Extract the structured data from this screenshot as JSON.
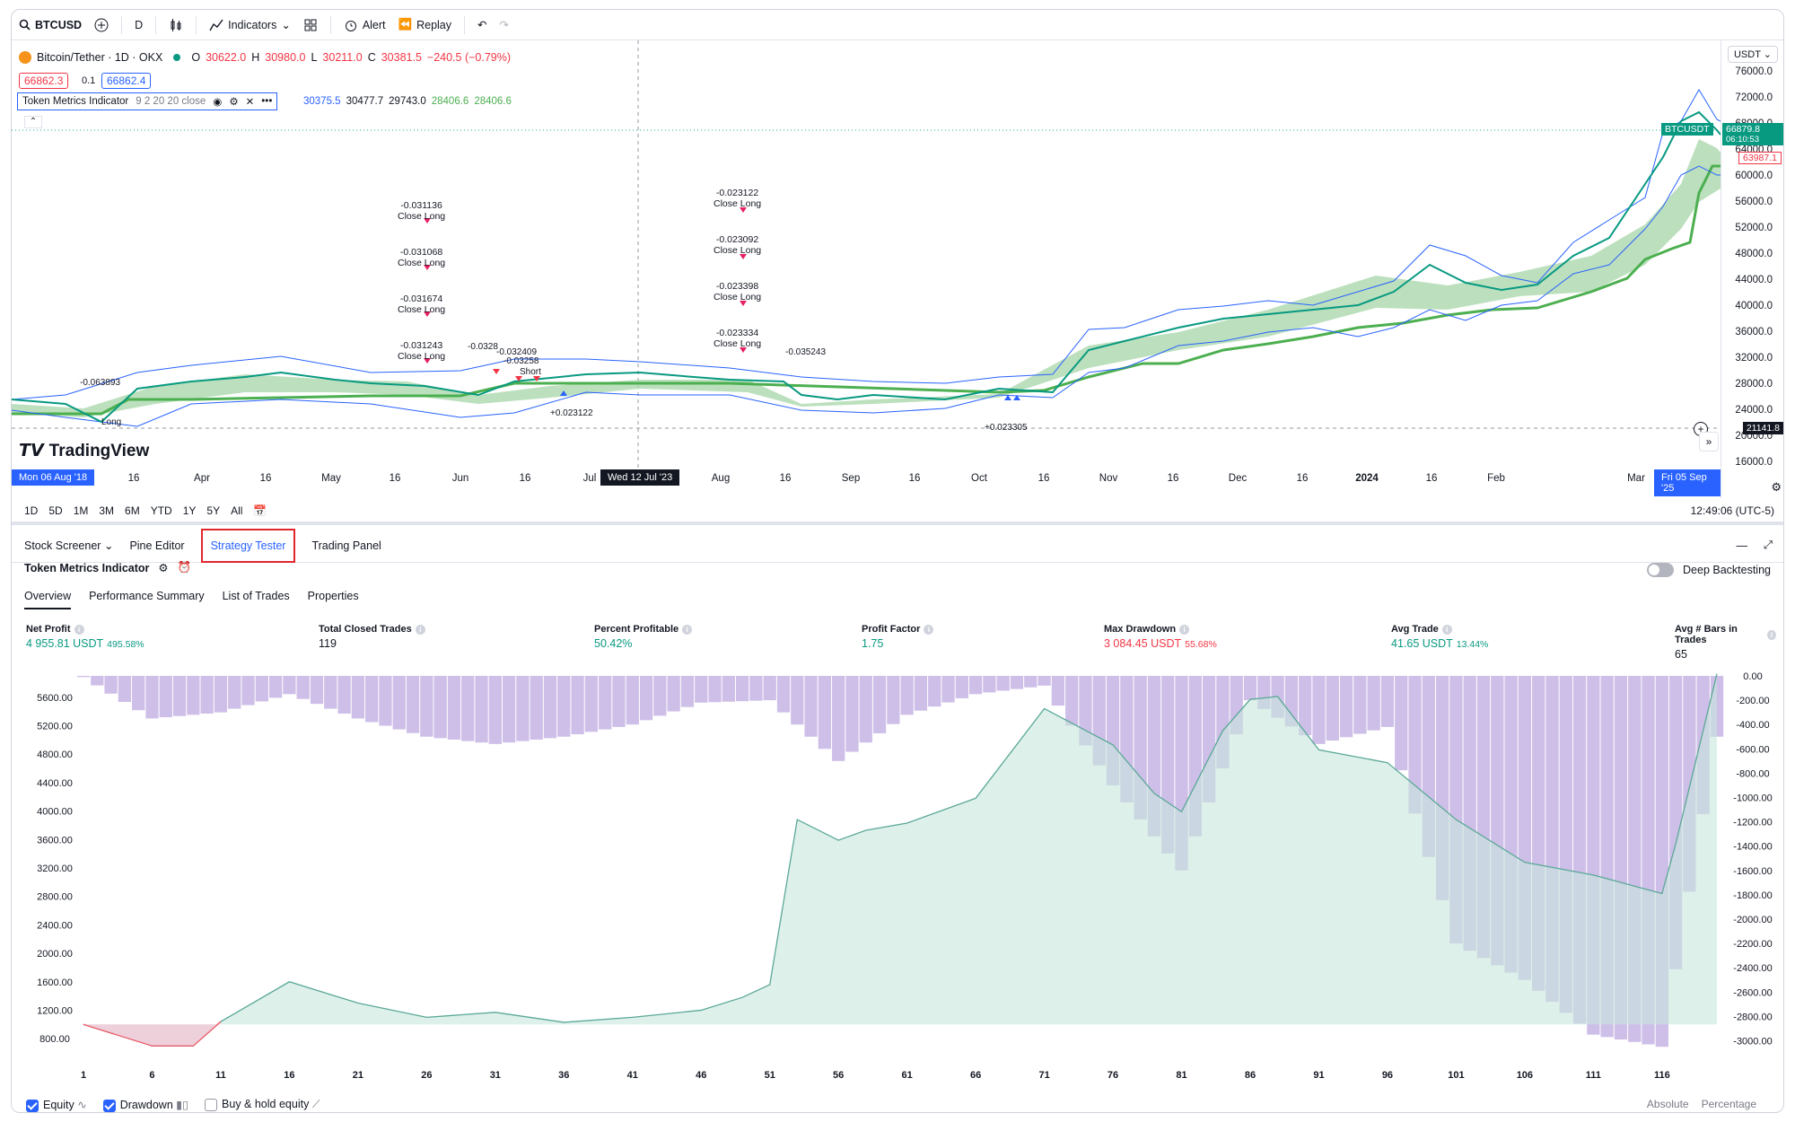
{
  "toolbar": {
    "symbol": "BTCUSD",
    "interval": "D",
    "indicators": "Indicators",
    "alert": "Alert",
    "replay": "Replay"
  },
  "legend": {
    "title": "Bitcoin/Tether · 1D · OKX",
    "o_label": "O",
    "o": "30622.0",
    "h_label": "H",
    "h": "30980.0",
    "l_label": "L",
    "l": "30211.0",
    "c_label": "C",
    "c": "30381.5",
    "change": "−240.5 (−0.79%)",
    "bid": "66862.3",
    "spread": "0.1",
    "ask": "66862.4"
  },
  "indicator": {
    "name": "Token Metrics Indicator",
    "params": "9 2 20 20 close",
    "values": [
      "30375.5",
      "30477.7",
      "29743.0",
      "28406.6",
      "28406.6"
    ]
  },
  "price_axis": {
    "currency": "USDT",
    "ticks": [
      "76000.0",
      "72000.0",
      "68000.0",
      "64000.0",
      "60000.0",
      "56000.0",
      "52000.0",
      "48000.0",
      "44000.0",
      "40000.0",
      "36000.0",
      "32000.0",
      "28000.0",
      "24000.0",
      "20000.0",
      "16000.0"
    ],
    "last_symbol": "BTCUSDT",
    "last_price": "66879.8",
    "countdown": "06:10:53",
    "low_tag": "63987.1",
    "crosshair_price": "21141.8"
  },
  "time_axis": {
    "start_tag": "Mon 06 Aug '18",
    "crosshair_tag": "Wed 12 Jul '23",
    "end_tag": "Fri 05 Sep '25",
    "labels": [
      "16",
      "Apr",
      "16",
      "May",
      "16",
      "Jun",
      "16",
      "Jul",
      "Aug",
      "16",
      "Sep",
      "16",
      "Oct",
      "16",
      "Nov",
      "16",
      "Dec",
      "16",
      "2024",
      "16",
      "Feb",
      "Mar"
    ]
  },
  "annotations": {
    "group1": [
      "-0.031136",
      "Close Long",
      "-0.031068",
      "Close Long",
      "-0.031674",
      "Close Long",
      "-0.031243",
      "Close Long"
    ],
    "group2": [
      "-0.023122",
      "Close Long",
      "-0.023092",
      "Close Long",
      "-0.023398",
      "Close Long",
      "-0.023334",
      "Close Long"
    ],
    "misc": [
      "-0.063893",
      "-0.0328",
      "-0.032409",
      "-0.03258",
      "Short",
      "Long",
      "+0.023122",
      "-0.035243",
      "+0.023305"
    ]
  },
  "logo_text": "TradingView",
  "ranges": [
    "1D",
    "5D",
    "1M",
    "3M",
    "6M",
    "YTD",
    "1Y",
    "5Y",
    "All"
  ],
  "clock": "12:49:06 (UTC-5)",
  "panel_tabs": {
    "screener": "Stock Screener",
    "pine": "Pine Editor",
    "tester": "Strategy Tester",
    "trading": "Trading Panel"
  },
  "strategy": {
    "name": "Token Metrics Indicator",
    "deep_backtesting": "Deep Backtesting",
    "subtabs": [
      "Overview",
      "Performance Summary",
      "List of Trades",
      "Properties"
    ]
  },
  "stats": {
    "net_profit": {
      "label": "Net Profit",
      "value": "4 955.81 USDT",
      "pct": "495.58%"
    },
    "closed_trades": {
      "label": "Total Closed Trades",
      "value": "119"
    },
    "pct_profitable": {
      "label": "Percent Profitable",
      "value": "50.42%"
    },
    "profit_factor": {
      "label": "Profit Factor",
      "value": "1.75"
    },
    "max_drawdown": {
      "label": "Max Drawdown",
      "value": "3 084.45 USDT",
      "pct": "55.68%"
    },
    "avg_trade": {
      "label": "Avg Trade",
      "value": "41.65 USDT",
      "pct": "13.44%"
    },
    "avg_bars": {
      "label": "Avg # Bars in Trades",
      "value": "65"
    }
  },
  "equity_chart": {
    "left_ticks": [
      "5600.00",
      "5200.00",
      "4800.00",
      "4400.00",
      "4000.00",
      "3600.00",
      "3200.00",
      "2800.00",
      "2400.00",
      "2000.00",
      "1600.00",
      "1200.00",
      "800.00"
    ],
    "right_ticks": [
      "0.00",
      "-200.00",
      "-400.00",
      "-600.00",
      "-800.00",
      "-1000.00",
      "-1200.00",
      "-1400.00",
      "-1600.00",
      "-1800.00",
      "-2000.00",
      "-2200.00",
      "-2400.00",
      "-2600.00",
      "-2800.00",
      "-3000.00"
    ],
    "x_ticks": [
      "1",
      "6",
      "11",
      "16",
      "21",
      "26",
      "31",
      "36",
      "41",
      "46",
      "51",
      "56",
      "61",
      "66",
      "71",
      "76",
      "81",
      "86",
      "91",
      "96",
      "101",
      "106",
      "111",
      "116"
    ],
    "absolute_label": "Absolute",
    "percentage_label": "Percentage"
  },
  "chart_data": {
    "type": "area",
    "title": "",
    "series": [
      {
        "name": "Equity",
        "x": [
          1,
          6,
          9,
          11,
          16,
          21,
          26,
          31,
          36,
          41,
          46,
          49,
          51,
          53,
          56,
          58,
          61,
          66,
          71,
          76,
          79,
          81,
          84,
          86,
          88,
          91,
          96,
          101,
          106,
          111,
          116,
          117,
          120
        ],
        "values": [
          1000,
          700,
          700,
          1040,
          1600,
          1300,
          1100,
          1170,
          1030,
          1100,
          1200,
          1380,
          1560,
          3880,
          3590,
          3730,
          3830,
          4180,
          5440,
          4930,
          4250,
          3990,
          5130,
          5570,
          5610,
          4860,
          4680,
          3880,
          3280,
          3100,
          2840,
          3540,
          5930
        ]
      },
      {
        "name": "Drawdown",
        "x": [
          1,
          6,
          11,
          16,
          21,
          26,
          31,
          36,
          41,
          46,
          51,
          56,
          61,
          66,
          71,
          76,
          81,
          86,
          91,
          96,
          101,
          106,
          111,
          116,
          120
        ],
        "values": [
          -10,
          -350,
          -300,
          -150,
          -350,
          -500,
          -560,
          -500,
          -400,
          -220,
          -200,
          -700,
          -320,
          -150,
          -80,
          -900,
          -1600,
          -200,
          -560,
          -420,
          -2200,
          -2500,
          -2950,
          -3050,
          -500
        ]
      }
    ],
    "legend": [
      "Equity",
      "Drawdown",
      "Buy & hold equity"
    ],
    "ylim": [
      600,
      5900
    ],
    "ylim_right": [
      -3100,
      0
    ]
  }
}
